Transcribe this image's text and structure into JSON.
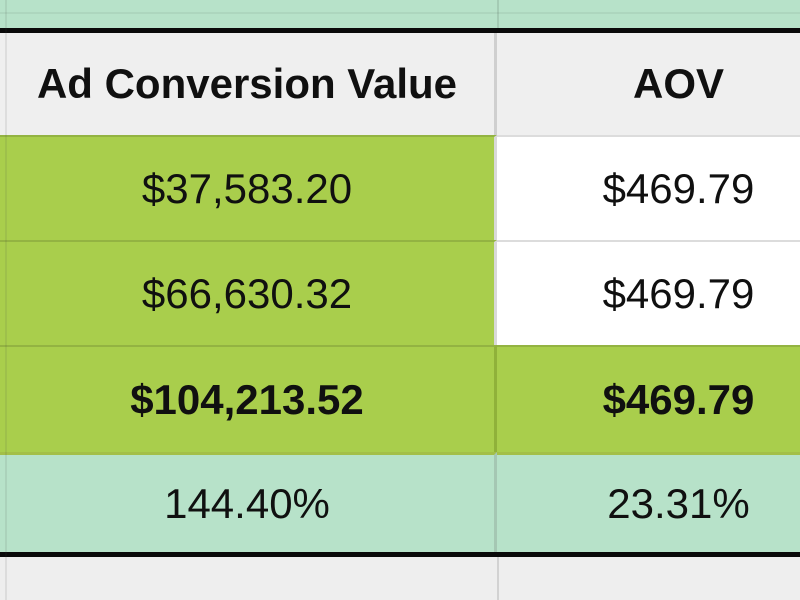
{
  "sheet": {
    "header": {
      "col1": "Ad Conversion Value",
      "col2": "AOV"
    },
    "rows": [
      {
        "label": "row-1",
        "col1": "$37,583.20",
        "col2": "$469.79"
      },
      {
        "label": "row-2",
        "col1": "$66,630.32",
        "col2": "$469.79"
      },
      {
        "label": "row-3-total",
        "col1": "$104,213.52",
        "col2": "$469.79"
      },
      {
        "label": "row-4-percent",
        "col1": "144.40%",
        "col2": "23.31%"
      }
    ],
    "colors": {
      "accent_green": "#a9ce4c",
      "accent_mint": "#b7e2c9",
      "header_gray": "#efefef",
      "cell_white": "#ffffff",
      "table_border_black": "#0a0a0a"
    }
  }
}
